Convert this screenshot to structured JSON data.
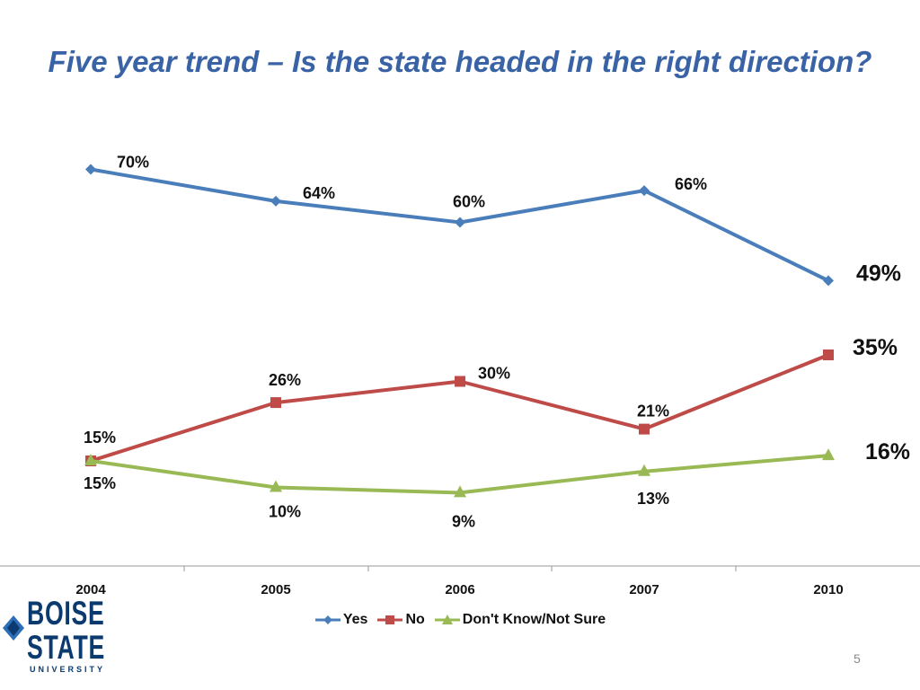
{
  "slide": {
    "title": "Five year trend – Is the state headed in the right direction?",
    "page_number": "5"
  },
  "logo": {
    "line1": "BOISE",
    "line2": "STATE",
    "line3": "UNIVERSITY",
    "accent_color": "#0b3a6e"
  },
  "chart_data": {
    "type": "line",
    "title": "",
    "categories": [
      "2004",
      "2005",
      "2006",
      "2007",
      "2010"
    ],
    "ylim": [
      0,
      80
    ],
    "grid": false,
    "legend_position": "bottom",
    "series": [
      {
        "name": "Yes",
        "values": [
          70,
          64,
          60,
          66,
          49
        ],
        "labels": [
          "70%",
          "64%",
          "60%",
          "66%",
          "49%"
        ],
        "color": "#4a7ebb",
        "marker": "diamond"
      },
      {
        "name": "No",
        "values": [
          15,
          26,
          30,
          21,
          35
        ],
        "labels": [
          "15%",
          "26%",
          "30%",
          "21%",
          "35%"
        ],
        "color": "#be4b48",
        "marker": "square"
      },
      {
        "name": "Don't Know/Not Sure",
        "values": [
          15,
          10,
          9,
          13,
          16
        ],
        "labels": [
          "15%",
          "10%",
          "9%",
          "13%",
          "16%"
        ],
        "color": "#98b954",
        "marker": "triangle"
      }
    ]
  }
}
